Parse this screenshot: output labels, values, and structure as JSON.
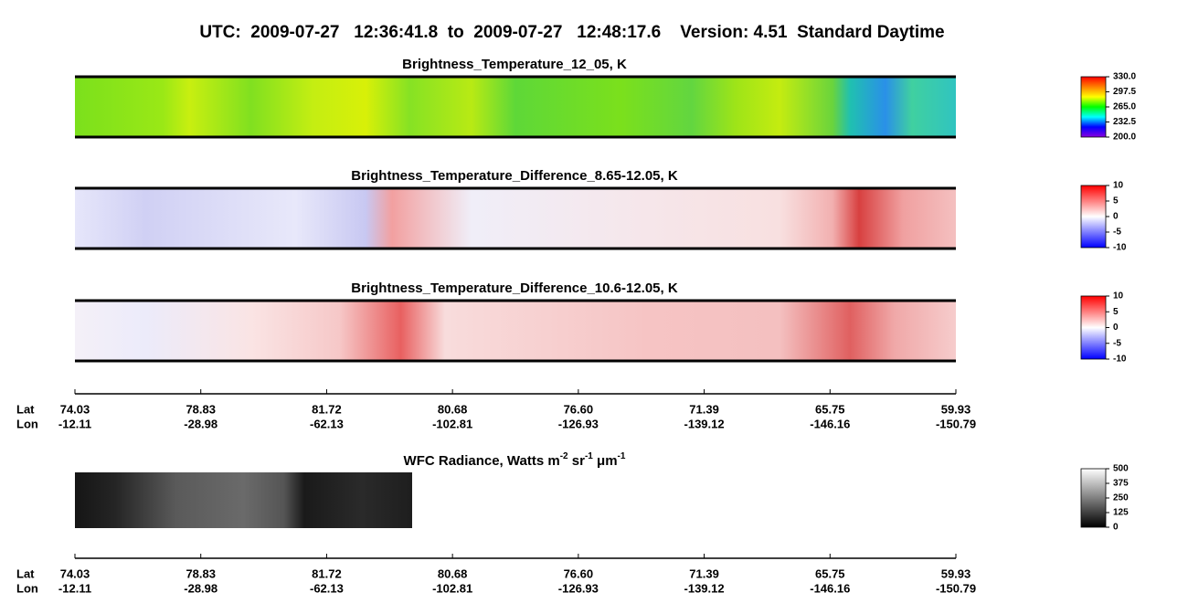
{
  "header": {
    "title": "UTC:  2009-07-27   12:36:41.8  to  2009-07-27   12:48:17.6    Version: 4.51  Standard Daytime"
  },
  "panels": [
    {
      "title": "Brightness_Temperature_12_05, K",
      "colorbar": {
        "range": [
          200,
          330
        ],
        "colors": [
          "#8a00e0",
          "#0000ff",
          "#00ffff",
          "#00ff00",
          "#ffff00",
          "#ff8000",
          "#ff0000"
        ],
        "ticks": [
          {
            "value": 330,
            "label": "330.0"
          },
          {
            "value": 297.5,
            "label": "297.5"
          },
          {
            "value": 265,
            "label": "265.0"
          },
          {
            "value": 232.5,
            "label": "232.5"
          },
          {
            "value": 200,
            "label": "200.0"
          }
        ]
      }
    },
    {
      "title": "Brightness_Temperature_Difference_8.65-12.05, K",
      "colorbar": {
        "range": [
          -10,
          10
        ],
        "colors": [
          "#0000ff",
          "#ffffff",
          "#ff0000"
        ],
        "ticks": [
          10,
          5,
          0,
          -5,
          -10
        ]
      }
    },
    {
      "title": "Brightness_Temperature_Difference_10.6-12.05, K",
      "colorbar": {
        "range": [
          -10,
          10
        ],
        "colors": [
          "#0000ff",
          "#ffffff",
          "#ff0000"
        ],
        "ticks": [
          10,
          5,
          0,
          -5,
          -10
        ]
      }
    },
    {
      "title_parts": [
        {
          "text": "WFC Radiance, Watts m"
        },
        {
          "sup": "-2"
        },
        {
          "text": " sr"
        },
        {
          "sup": "-1"
        },
        {
          "text": " μm"
        },
        {
          "sup": "-1"
        }
      ],
      "colorbar": {
        "range": [
          0,
          500
        ],
        "colors": [
          "#000000",
          "#ffffff"
        ],
        "ticks": [
          500,
          375,
          250,
          125,
          0
        ]
      }
    }
  ],
  "axis": {
    "lat_label": "Lat",
    "lon_label": "Lon",
    "lat": [
      "74.03",
      "78.83",
      "81.72",
      "80.68",
      "76.60",
      "71.39",
      "65.75",
      "59.93"
    ],
    "lon": [
      "-12.11",
      "-28.98",
      "-62.13",
      "-102.81",
      "-126.93",
      "-139.12",
      "-146.16",
      "-150.79"
    ]
  }
}
